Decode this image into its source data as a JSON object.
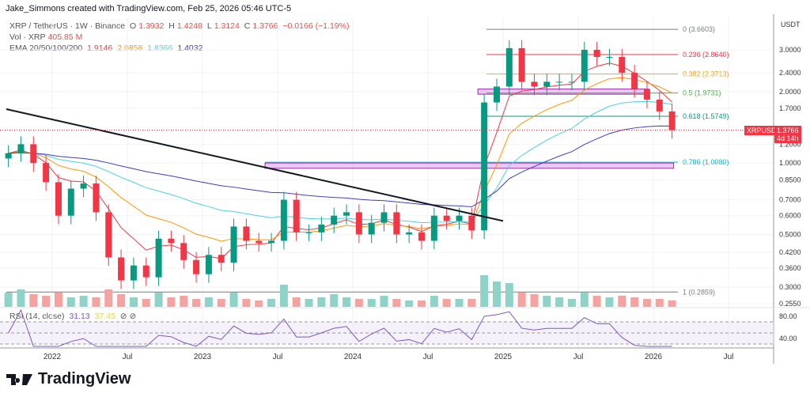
{
  "credit": "Jake_Simmons created with TradingView.com, Feb 25, 2026 05:46 UTC-5",
  "legend": {
    "symbol": "XRP / TetherUS · 1W · Binance",
    "o_label": "O",
    "o": "1.3932",
    "h_label": "H",
    "h": "1.4248",
    "l_label": "L",
    "l": "1.3124",
    "c_label": "C",
    "c": "1.3766",
    "change": "−0.0166 (−1.19%)",
    "vol_label": "Vol · XRP",
    "vol": "405.85 M",
    "ema_label": "EMA 20/50/100/200",
    "ema": [
      "1.9146",
      "2.0858",
      "1.8366",
      "1.4032"
    ],
    "ema_colors": [
      "#f23645",
      "#ff9800",
      "#4dd0e1",
      "#3f3fbf"
    ],
    "rsi_label": "RSI (14, close)",
    "rsi": "31.13",
    "rsi_ma": "37.45"
  },
  "axis": {
    "currency": "USDT",
    "price_ticks": [
      "3.0000",
      "2.4000",
      "2.0000",
      "1.7000",
      "1.2000",
      "1.0000",
      "0.8500",
      "0.7000",
      "0.6000",
      "0.5000",
      "0.4200",
      "0.3600",
      "0.3000",
      "0.2550"
    ],
    "rsi_ticks": [
      "80.00",
      "40.00"
    ],
    "time_ticks": [
      "2022",
      "Jul",
      "2023",
      "Jul",
      "2024",
      "Jul",
      "2025",
      "Jul",
      "2026",
      "Jul"
    ]
  },
  "last_price": {
    "symbol": "XRPUSDT",
    "price": "1.3766",
    "countdown": "4d 14h",
    "color": "#f23645"
  },
  "fib": [
    {
      "label": "0 (3.6603)",
      "value": 3.6603,
      "color": "#787b86"
    },
    {
      "label": "0.236 (2.8640)",
      "value": 2.864,
      "color": "#f23645"
    },
    {
      "label": "0.382 (2.3713)",
      "value": 2.3713,
      "color": "#f5a623"
    },
    {
      "label": "0.5 (1.9731)",
      "value": 1.9731,
      "color": "#4caf50"
    },
    {
      "label": "0.618 (1.5749)",
      "value": 1.5749,
      "color": "#089981"
    },
    {
      "label": "0.786 (1.0080)",
      "value": 1.008,
      "color": "#00bcd4"
    },
    {
      "label": "1 (0.2859)",
      "value": 0.2859,
      "color": "#787b86"
    }
  ],
  "brand": "TradingView",
  "chart_data": {
    "type": "candlestick",
    "scale": "log",
    "ylim": [
      0.25,
      3.9
    ],
    "months": [
      "2021-09",
      "2021-10",
      "2021-11",
      "2021-12",
      "2022-01",
      "2022-02",
      "2022-03",
      "2022-04",
      "2022-05",
      "2022-06",
      "2022-07",
      "2022-08",
      "2022-09",
      "2022-10",
      "2022-11",
      "2022-12",
      "2023-01",
      "2023-02",
      "2023-03",
      "2023-04",
      "2023-05",
      "2023-06",
      "2023-07",
      "2023-08",
      "2023-09",
      "2023-10",
      "2023-11",
      "2023-12",
      "2024-01",
      "2024-02",
      "2024-03",
      "2024-04",
      "2024-05",
      "2024-06",
      "2024-07",
      "2024-08",
      "2024-09",
      "2024-10",
      "2024-11",
      "2024-12",
      "2025-01",
      "2025-02",
      "2025-03",
      "2025-04",
      "2025-05",
      "2025-06",
      "2025-07",
      "2025-08",
      "2025-09",
      "2025-10",
      "2025-11",
      "2025-12",
      "2026-01",
      "2026-02"
    ],
    "close": [
      1.1,
      1.2,
      1.0,
      0.83,
      0.6,
      0.78,
      0.82,
      0.62,
      0.4,
      0.32,
      0.37,
      0.33,
      0.48,
      0.46,
      0.39,
      0.34,
      0.41,
      0.38,
      0.54,
      0.47,
      0.46,
      0.47,
      0.7,
      0.51,
      0.51,
      0.55,
      0.6,
      0.62,
      0.5,
      0.56,
      0.62,
      0.5,
      0.51,
      0.47,
      0.6,
      0.57,
      0.6,
      0.52,
      1.8,
      2.1,
      3.05,
      2.2,
      2.1,
      2.2,
      2.2,
      2.2,
      3.0,
      2.8,
      2.8,
      2.4,
      2.05,
      1.85,
      1.65,
      1.3766
    ],
    "volume_m": [
      900,
      1100,
      800,
      700,
      900,
      600,
      700,
      600,
      1100,
      800,
      600,
      500,
      900,
      600,
      700,
      500,
      600,
      500,
      900,
      500,
      400,
      500,
      1400,
      600,
      500,
      600,
      800,
      600,
      500,
      500,
      700,
      500,
      400,
      400,
      700,
      500,
      500,
      500,
      2000,
      1600,
      1500,
      900,
      800,
      700,
      600,
      500,
      900,
      700,
      600,
      700,
      600,
      500,
      500,
      405.85
    ],
    "trendline": [
      {
        "month": "2021-09",
        "price": 1.7
      },
      {
        "month": "2024-12",
        "price": 0.57
      }
    ],
    "zones": [
      {
        "from": "2023-06",
        "to": "2026-02",
        "low": 0.95,
        "high": 1.0
      },
      {
        "from": "2024-11",
        "to": "2025-12",
        "low": 1.95,
        "high": 2.05
      }
    ]
  }
}
